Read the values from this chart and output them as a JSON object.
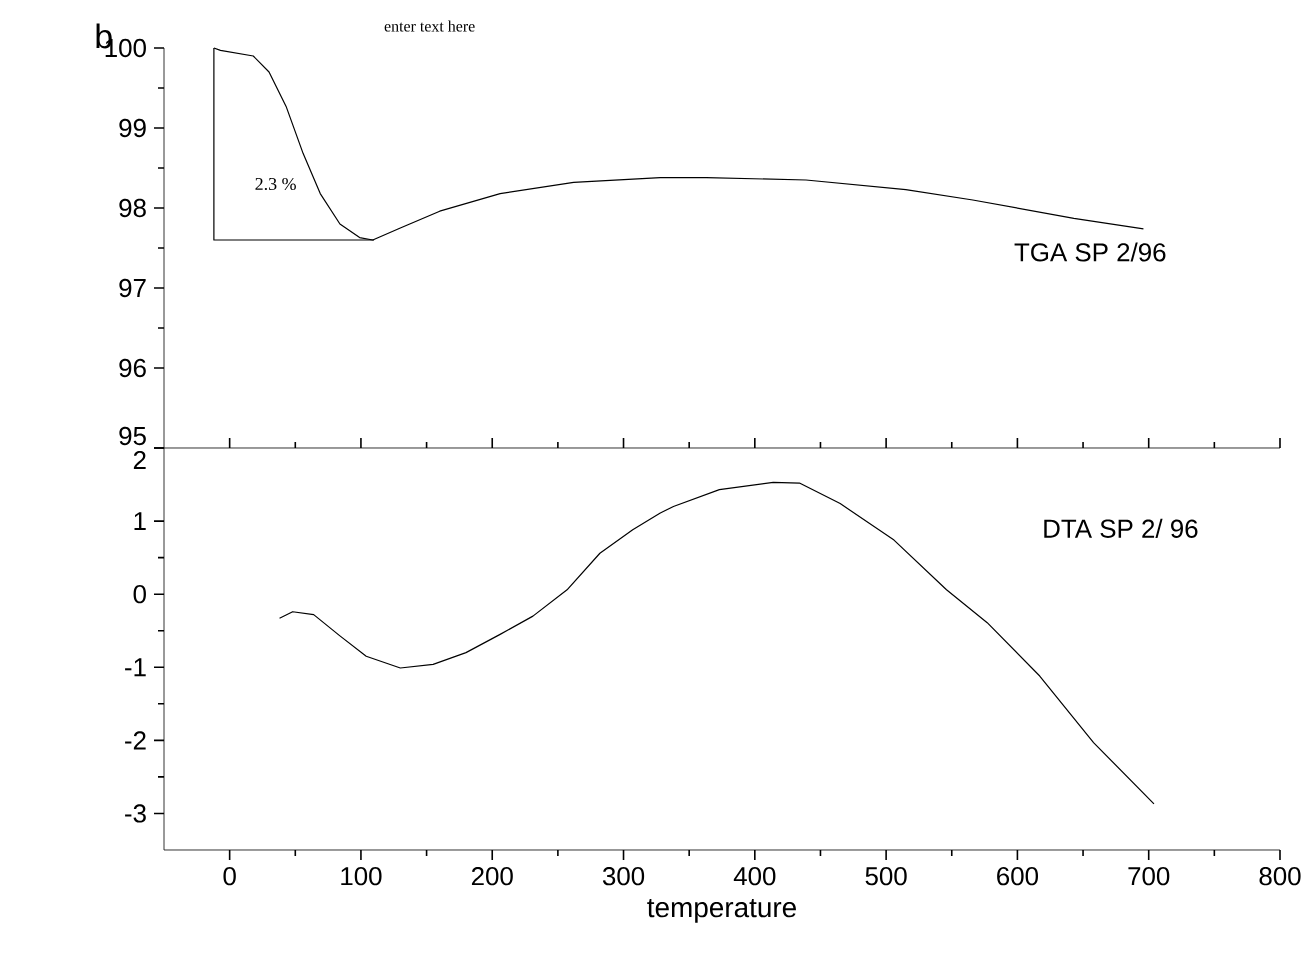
{
  "chart_data": [
    {
      "type": "line",
      "xlim": [
        -50,
        800
      ],
      "xticks": [
        0,
        100,
        200,
        300,
        400,
        500,
        600,
        700,
        800
      ],
      "ylim": [
        95,
        100
      ],
      "yticks": [
        95,
        96,
        97,
        98,
        99,
        100
      ],
      "tick_labels": "y",
      "marker": "none",
      "line_style": "solid",
      "color": "#000000",
      "series": [
        {
          "name": "TGA SP 2/96",
          "x": [
            -12,
            -7,
            18,
            30,
            43,
            56,
            69,
            84,
            99,
            109,
            130,
            160,
            206,
            262,
            328,
            363,
            439,
            515,
            566,
            643,
            696
          ],
          "values": [
            100,
            99.97,
            99.9,
            99.7,
            99.27,
            98.68,
            98.18,
            97.8,
            97.63,
            97.6,
            97.75,
            97.96,
            98.18,
            98.32,
            98.38,
            98.38,
            98.35,
            98.23,
            98.1,
            97.87,
            97.74
          ]
        },
        {
          "x": [
            -12,
            -12,
            110
          ],
          "values": [
            100,
            97.6,
            97.6
          ]
        }
      ],
      "annotations": [
        "b",
        "enter text here",
        "2.3 %"
      ]
    },
    {
      "type": "line",
      "xlim": [
        -50,
        800
      ],
      "xticks": [
        0,
        100,
        200,
        300,
        400,
        500,
        600,
        700,
        800
      ],
      "ylim": [
        -3.5,
        2
      ],
      "yticks": [
        -3,
        -2,
        -1,
        0,
        1,
        2
      ],
      "xlabel": "temperature",
      "marker": "none",
      "line_style": "solid",
      "color": "#000000",
      "series": [
        {
          "name": "DTA SP 2/ 96",
          "x": [
            38,
            48,
            64,
            84,
            104,
            130,
            155,
            180,
            206,
            231,
            257,
            282,
            307,
            328,
            338,
            373,
            414,
            434,
            465,
            506,
            546,
            577,
            617,
            658,
            704
          ],
          "values": [
            -0.33,
            -0.24,
            -0.28,
            -0.57,
            -0.85,
            -1.01,
            -0.96,
            -0.8,
            -0.55,
            -0.3,
            0.06,
            0.56,
            0.88,
            1.11,
            1.2,
            1.43,
            1.53,
            1.52,
            1.24,
            0.74,
            0.06,
            -0.39,
            -1.12,
            -2.03,
            -2.87
          ]
        }
      ]
    }
  ]
}
